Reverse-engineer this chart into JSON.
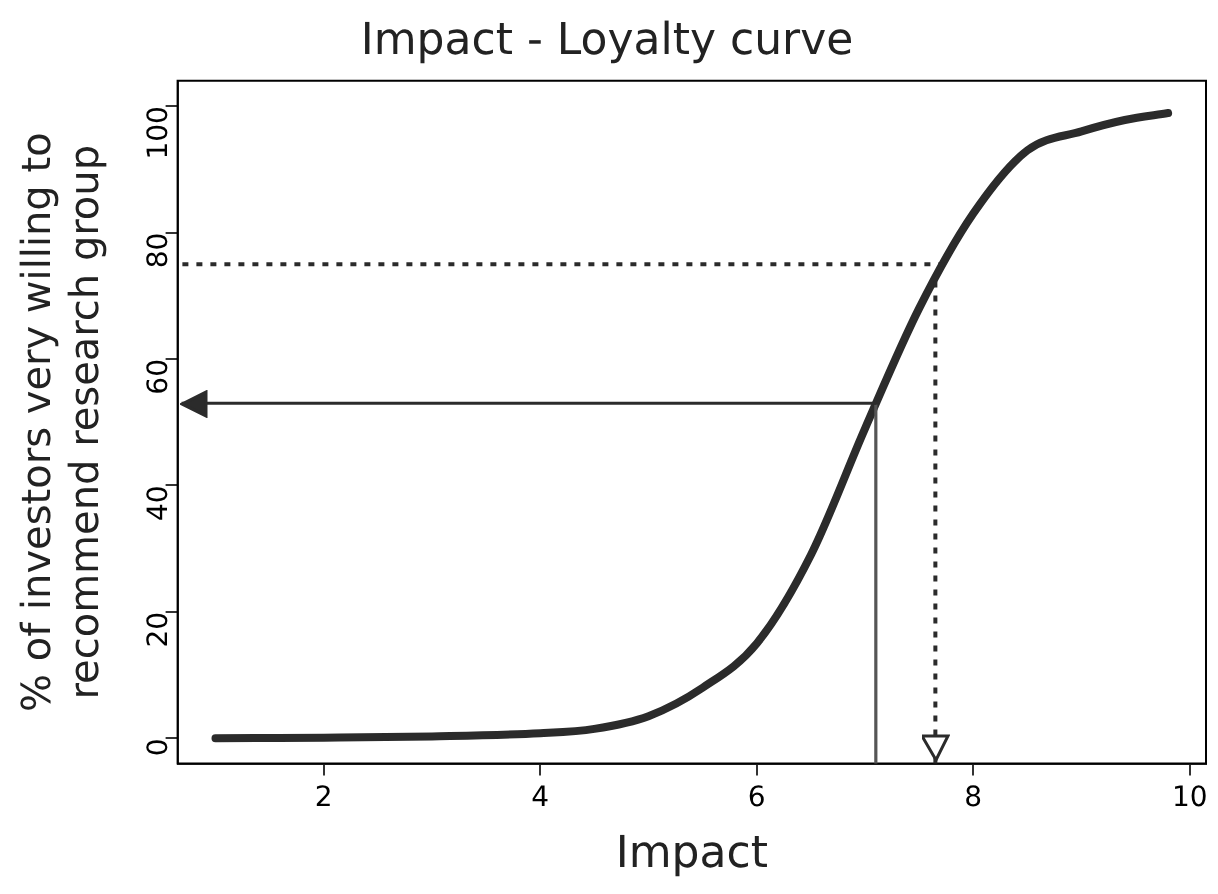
{
  "chart_data": {
    "type": "line",
    "title": "Impact - Loyalty curve",
    "xlabel": "Impact",
    "ylabel": "% of investors very willing to\nrecommend research group",
    "series": [
      {
        "color": "#2b2b2b",
        "x": [
          1,
          2,
          3,
          4,
          4.5,
          5,
          5.5,
          6,
          6.5,
          7,
          7.5,
          8,
          8.5,
          9,
          9.4,
          9.8
        ],
        "values": [
          0,
          0.1,
          0.3,
          0.8,
          1.5,
          3.5,
          8,
          15,
          29,
          49,
          68,
          83,
          93,
          96,
          97.8,
          98.9
        ]
      }
    ],
    "xlim": [
      0.65,
      10.15
    ],
    "xticks": [
      2,
      4,
      6,
      8,
      10
    ],
    "ylim": [
      -4,
      104
    ],
    "yticks": [
      0,
      20,
      40,
      60,
      80,
      100
    ],
    "grid": false,
    "legend": false,
    "marker": "none",
    "line_style": "solid",
    "ref_lines": [
      {
        "axis": "x",
        "value": 7.1,
        "color": "#555555",
        "line_style": "solid"
      },
      {
        "axis": "y",
        "value": 53,
        "color": "#2b2b2b",
        "line_style": "solid"
      },
      {
        "axis": "x",
        "value": 7.65,
        "color": "#2b2b2b",
        "line_style": "dotted"
      },
      {
        "axis": "y",
        "value": 75,
        "color": "#2b2b2b",
        "line_style": "dotted"
      }
    ]
  }
}
